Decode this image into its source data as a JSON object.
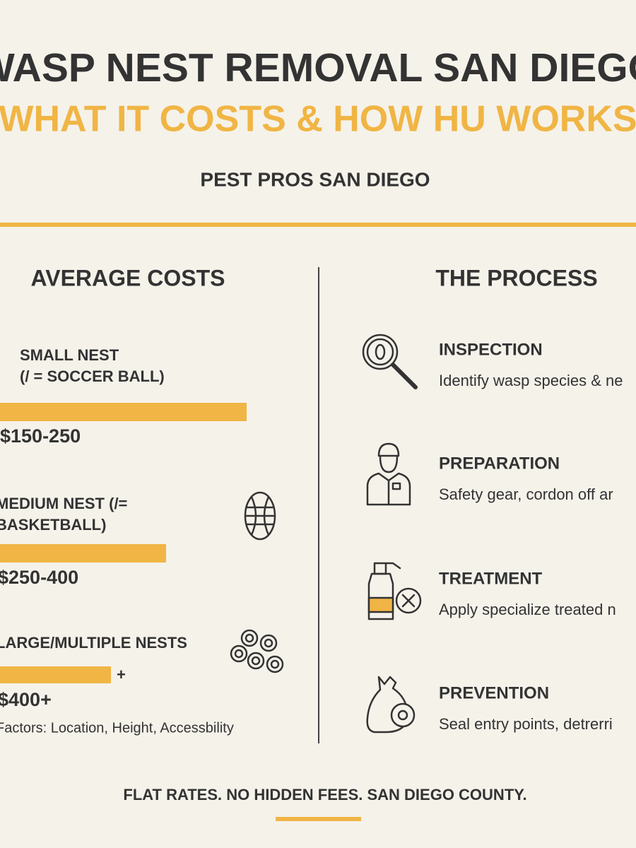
{
  "header": {
    "title": "WASP NEST REMOVAL SAN DIEGO",
    "subtitle": "WHAT IT COSTS & HOW HU WORKS",
    "company": "PEST PROS SAN DIEGO"
  },
  "costs": {
    "heading": "AVERAGE COSTS",
    "items": [
      {
        "label": [
          "SMALL NEST",
          "(/ = SOCCER BALL)"
        ],
        "price": "$150-250"
      },
      {
        "label": [
          "MEDIUM NEST (/=",
          "BASKETBALL)"
        ],
        "price": "$250-400"
      },
      {
        "label": [
          "LARGE/MULTIPLE NESTS"
        ],
        "extra": "+",
        "price": "$400+"
      }
    ],
    "note": "Factors: Location, Height, Accessbility"
  },
  "process": {
    "heading": "THE PROCESS",
    "steps": [
      {
        "title": "INSPECTION",
        "text": "Identify wasp species & ne"
      },
      {
        "title": "PREPARATION",
        "text": "Safety gear, cordon off ar"
      },
      {
        "title": "TREATMENT",
        "text": "Apply specialize treated n"
      },
      {
        "title": "PREVENTION",
        "text": "Seal entry points, detrerri"
      }
    ]
  },
  "footer": "FLAT RATES. NO HIDDEN FEES. SAN DIEGO COUNTY."
}
